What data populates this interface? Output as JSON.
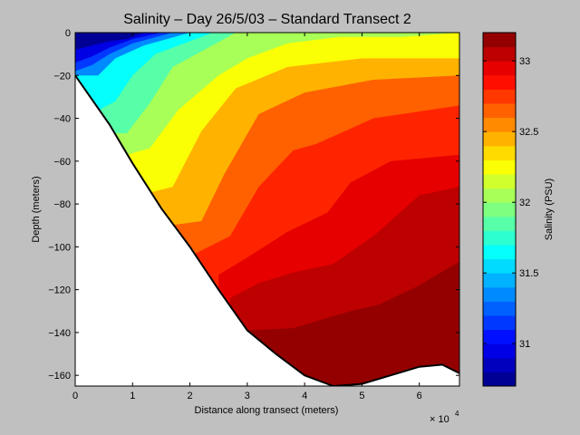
{
  "chart_data": {
    "type": "heatmap",
    "title": "Salinity – Day 26/5/03 – Standard Transect 2",
    "xlabel": "Distance along transect (meters)",
    "ylabel": "Depth (meters)",
    "x_multiplier": "× 10",
    "x_multiplier_exp": "4",
    "xlim": [
      0,
      67000
    ],
    "ylim": [
      -165,
      0
    ],
    "xticks": [
      "0",
      "1",
      "2",
      "3",
      "4",
      "5",
      "6"
    ],
    "yticks": [
      "0",
      "−20",
      "−40",
      "−60",
      "−80",
      "−100",
      "−120",
      "−140",
      "−160"
    ],
    "colorbar": {
      "label": "Salinity (PSU)",
      "range": [
        30.7,
        33.2
      ],
      "ticks": [
        "31",
        "31.5",
        "32",
        "32.5",
        "33"
      ],
      "levels": [
        30.7,
        30.8,
        30.9,
        31.0,
        31.1,
        31.2,
        31.3,
        31.4,
        31.5,
        31.6,
        31.7,
        31.8,
        31.9,
        32.0,
        32.1,
        32.2,
        32.3,
        32.4,
        32.5,
        32.6,
        32.7,
        32.8,
        32.9,
        33.0,
        33.1
      ]
    },
    "contours": [
      {
        "level": 30.9,
        "points": [
          [
            0,
            -8
          ],
          [
            3000,
            -6
          ],
          [
            6000,
            -4
          ],
          [
            9000,
            -3
          ],
          [
            12000,
            0
          ]
        ]
      },
      {
        "level": 31.1,
        "points": [
          [
            0,
            -14
          ],
          [
            3000,
            -11
          ],
          [
            6000,
            -7
          ],
          [
            10000,
            -3
          ],
          [
            15000,
            0
          ]
        ]
      },
      {
        "level": 31.3,
        "points": [
          [
            0,
            -18
          ],
          [
            3000,
            -15
          ],
          [
            6000,
            -10
          ],
          [
            10000,
            -5
          ],
          [
            17000,
            0
          ]
        ]
      },
      {
        "level": 31.6,
        "points": [
          [
            0,
            -20
          ],
          [
            4000,
            -20
          ],
          [
            7000,
            -12
          ],
          [
            12000,
            -6
          ],
          [
            20000,
            0
          ]
        ]
      },
      {
        "level": 31.8,
        "points": [
          [
            3500,
            -37
          ],
          [
            7000,
            -32
          ],
          [
            10000,
            -20
          ],
          [
            14000,
            -10
          ],
          [
            24000,
            0
          ]
        ]
      },
      {
        "level": 32.0,
        "points": [
          [
            6000,
            -47
          ],
          [
            9000,
            -47
          ],
          [
            13000,
            -33
          ],
          [
            17000,
            -16
          ],
          [
            28000,
            0
          ]
        ]
      },
      {
        "level": 32.2,
        "points": [
          [
            9000,
            -57
          ],
          [
            13000,
            -54
          ],
          [
            18000,
            -36
          ],
          [
            25000,
            -20
          ],
          [
            30000,
            -12
          ],
          [
            37000,
            -5
          ],
          [
            46000,
            -2
          ],
          [
            57000,
            -2
          ],
          [
            67000,
            0
          ]
        ]
      },
      {
        "level": 32.4,
        "points": [
          [
            12500,
            -75
          ],
          [
            17000,
            -72
          ],
          [
            22000,
            -46
          ],
          [
            28000,
            -26
          ],
          [
            37000,
            -16
          ],
          [
            50000,
            -12
          ],
          [
            67000,
            -12
          ]
        ]
      },
      {
        "level": 32.6,
        "points": [
          [
            16500,
            -90
          ],
          [
            22000,
            -88
          ],
          [
            26000,
            -66
          ],
          [
            32000,
            -38
          ],
          [
            40000,
            -28
          ],
          [
            52000,
            -22
          ],
          [
            67000,
            -20
          ]
        ]
      },
      {
        "level": 32.75,
        "points": [
          [
            21000,
            -103
          ],
          [
            27000,
            -95
          ],
          [
            32000,
            -72
          ],
          [
            38000,
            -55
          ],
          [
            42000,
            -52
          ],
          [
            52000,
            -40
          ],
          [
            67000,
            -34
          ]
        ]
      },
      {
        "level": 32.9,
        "points": [
          [
            25000,
            -113
          ],
          [
            30000,
            -105
          ],
          [
            37000,
            -93
          ],
          [
            44000,
            -84
          ],
          [
            48000,
            -70
          ],
          [
            55000,
            -60
          ],
          [
            67000,
            -57
          ]
        ]
      },
      {
        "level": 33.0,
        "points": [
          [
            27000,
            -124
          ],
          [
            32000,
            -117
          ],
          [
            38000,
            -112
          ],
          [
            45000,
            -108
          ],
          [
            52000,
            -95
          ],
          [
            60000,
            -76
          ],
          [
            67000,
            -72
          ]
        ]
      },
      {
        "level": 33.1,
        "points": [
          [
            30000,
            -139
          ],
          [
            38000,
            -138
          ],
          [
            48000,
            -130
          ],
          [
            53000,
            -127
          ],
          [
            60000,
            -118
          ],
          [
            65000,
            -110
          ],
          [
            67000,
            -107
          ]
        ]
      }
    ],
    "bathymetry": [
      [
        0,
        -20
      ],
      [
        6000,
        -43
      ],
      [
        10000,
        -61
      ],
      [
        15000,
        -82
      ],
      [
        20000,
        -100
      ],
      [
        25000,
        -120
      ],
      [
        30000,
        -139
      ],
      [
        35000,
        -150
      ],
      [
        40000,
        -160
      ],
      [
        45000,
        -165
      ],
      [
        50000,
        -164
      ],
      [
        55000,
        -160
      ],
      [
        60000,
        -156
      ],
      [
        64000,
        -155
      ],
      [
        67000,
        -159
      ]
    ]
  }
}
